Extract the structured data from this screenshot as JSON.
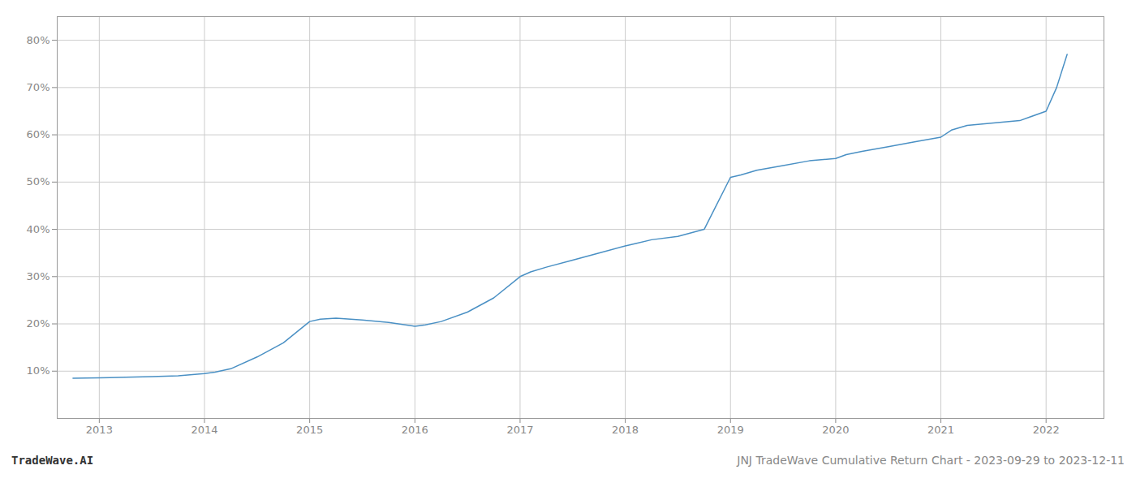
{
  "chart_data": {
    "type": "line",
    "title": "JNJ TradeWave Cumulative Return Chart - 2023-09-29 to 2023-12-11",
    "annotations": [
      "TradeWave.AI"
    ],
    "color": "#4a90c4",
    "x": [
      2012.75,
      2013.0,
      2013.1,
      2013.25,
      2013.5,
      2013.75,
      2014.0,
      2014.1,
      2014.25,
      2014.5,
      2014.75,
      2015.0,
      2015.1,
      2015.25,
      2015.5,
      2015.75,
      2016.0,
      2016.1,
      2016.25,
      2016.5,
      2016.75,
      2017.0,
      2017.1,
      2017.25,
      2017.5,
      2017.75,
      2018.0,
      2018.1,
      2018.25,
      2018.5,
      2018.75,
      2019.0,
      2019.1,
      2019.25,
      2019.5,
      2019.75,
      2020.0,
      2020.1,
      2020.25,
      2020.5,
      2020.75,
      2021.0,
      2021.1,
      2021.25,
      2021.5,
      2021.75,
      2022.0,
      2022.1,
      2022.2
    ],
    "values": [
      8.5,
      8.6,
      8.65,
      8.7,
      8.85,
      9.0,
      9.5,
      9.8,
      10.5,
      13.0,
      16.0,
      20.5,
      21.0,
      21.2,
      20.8,
      20.3,
      19.5,
      19.8,
      20.5,
      22.5,
      25.5,
      30.0,
      31.0,
      32.0,
      33.5,
      35.0,
      36.5,
      37.0,
      37.8,
      38.5,
      40.0,
      51.0,
      51.5,
      52.5,
      53.5,
      54.5,
      55.0,
      55.8,
      56.5,
      57.5,
      58.5,
      59.5,
      61.0,
      62.0,
      62.5,
      63.0,
      65.0,
      70.0,
      77.0
    ],
    "xlim": [
      2012.6,
      2022.55
    ],
    "xticks": [
      2013,
      2014,
      2015,
      2016,
      2017,
      2018,
      2019,
      2020,
      2021,
      2022
    ],
    "ylim": [
      0,
      85
    ],
    "yticks": [
      {
        "value": 10,
        "label": "10%"
      },
      {
        "value": 20,
        "label": "20%"
      },
      {
        "value": 30,
        "label": "30%"
      },
      {
        "value": 40,
        "label": "40%"
      },
      {
        "value": 50,
        "label": "50%"
      },
      {
        "value": 60,
        "label": "60%"
      },
      {
        "value": 70,
        "label": "70%"
      },
      {
        "value": 80,
        "label": "80%"
      }
    ],
    "grid": true
  }
}
